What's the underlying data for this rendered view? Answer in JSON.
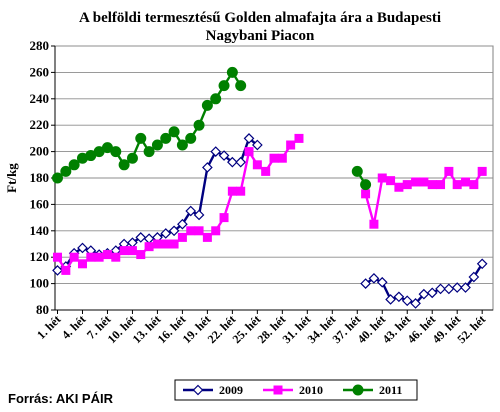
{
  "chart_data": {
    "type": "line",
    "title": [
      "A belföldi termesztésű Golden almafajta ára a Budapesti",
      "Nagybani Piacon"
    ],
    "ylabel": "Ft/kg",
    "xlabel": "",
    "ylim": [
      80,
      280
    ],
    "yticks": [
      80,
      100,
      120,
      140,
      160,
      180,
      200,
      220,
      240,
      260,
      280
    ],
    "grid": true,
    "legend_position": "bottom",
    "x_tick_labels": [
      "1. hét",
      "4. hét",
      "7. hét",
      "10. hét",
      "13. hét",
      "16. hét",
      "19. hét",
      "22. hét",
      "25. hét",
      "28. hét",
      "31. hét",
      "34. hét",
      "37. hét",
      "40. hét",
      "43. hét",
      "46. hét",
      "49. hét",
      "52. hét"
    ],
    "x_tick_weeks": [
      1,
      4,
      7,
      10,
      13,
      16,
      19,
      22,
      25,
      28,
      31,
      34,
      37,
      40,
      43,
      46,
      49,
      52
    ],
    "series": [
      {
        "name": "2009",
        "color": "#000080",
        "marker": "diamond",
        "points": [
          [
            1,
            110
          ],
          [
            2,
            113
          ],
          [
            3,
            123
          ],
          [
            4,
            127
          ],
          [
            5,
            125
          ],
          [
            6,
            122
          ],
          [
            7,
            123
          ],
          [
            8,
            125
          ],
          [
            9,
            130
          ],
          [
            10,
            131
          ],
          [
            11,
            135
          ],
          [
            12,
            134
          ],
          [
            13,
            135
          ],
          [
            14,
            138
          ],
          [
            15,
            140
          ],
          [
            16,
            145
          ],
          [
            17,
            155
          ],
          [
            18,
            152
          ],
          [
            19,
            188
          ],
          [
            20,
            200
          ],
          [
            21,
            197
          ],
          [
            22,
            192
          ],
          [
            23,
            192
          ],
          [
            24,
            210
          ],
          [
            25,
            205
          ],
          [
            38,
            100
          ],
          [
            39,
            104
          ],
          [
            40,
            101
          ],
          [
            41,
            88
          ],
          [
            42,
            90
          ],
          [
            43,
            87
          ],
          [
            44,
            85
          ],
          [
            45,
            92
          ],
          [
            46,
            93
          ],
          [
            47,
            96
          ],
          [
            48,
            96
          ],
          [
            49,
            97
          ],
          [
            50,
            97
          ],
          [
            51,
            105
          ],
          [
            52,
            115
          ]
        ]
      },
      {
        "name": "2010",
        "color": "#ff00ff",
        "marker": "square",
        "points": [
          [
            1,
            120
          ],
          [
            2,
            110
          ],
          [
            3,
            120
          ],
          [
            4,
            115
          ],
          [
            5,
            120
          ],
          [
            6,
            120
          ],
          [
            7,
            122
          ],
          [
            8,
            120
          ],
          [
            9,
            125
          ],
          [
            10,
            125
          ],
          [
            11,
            122
          ],
          [
            12,
            128
          ],
          [
            13,
            130
          ],
          [
            14,
            130
          ],
          [
            15,
            130
          ],
          [
            16,
            135
          ],
          [
            17,
            140
          ],
          [
            18,
            140
          ],
          [
            19,
            135
          ],
          [
            20,
            140
          ],
          [
            21,
            150
          ],
          [
            22,
            170
          ],
          [
            23,
            170
          ],
          [
            24,
            200
          ],
          [
            25,
            190
          ],
          [
            26,
            185
          ],
          [
            27,
            195
          ],
          [
            28,
            195
          ],
          [
            29,
            205
          ],
          [
            30,
            210
          ],
          [
            38,
            168
          ],
          [
            39,
            145
          ],
          [
            40,
            180
          ],
          [
            41,
            178
          ],
          [
            42,
            173
          ],
          [
            43,
            175
          ],
          [
            44,
            177
          ],
          [
            45,
            177
          ],
          [
            46,
            175
          ],
          [
            47,
            175
          ],
          [
            48,
            185
          ],
          [
            49,
            175
          ],
          [
            50,
            177
          ],
          [
            51,
            175
          ],
          [
            52,
            185
          ]
        ]
      },
      {
        "name": "2011",
        "color": "#008000",
        "marker": "circle",
        "points": [
          [
            1,
            180
          ],
          [
            2,
            185
          ],
          [
            3,
            190
          ],
          [
            4,
            195
          ],
          [
            5,
            197
          ],
          [
            6,
            200
          ],
          [
            7,
            203
          ],
          [
            8,
            200
          ],
          [
            9,
            190
          ],
          [
            10,
            195
          ],
          [
            11,
            210
          ],
          [
            12,
            200
          ],
          [
            13,
            205
          ],
          [
            14,
            210
          ],
          [
            15,
            215
          ],
          [
            16,
            205
          ],
          [
            17,
            210
          ],
          [
            18,
            220
          ],
          [
            19,
            235
          ],
          [
            20,
            240
          ],
          [
            21,
            250
          ],
          [
            22,
            260
          ],
          [
            23,
            250
          ],
          [
            37,
            185
          ],
          [
            38,
            175
          ]
        ]
      }
    ]
  },
  "source": "Forrás: AKI PÁIR"
}
